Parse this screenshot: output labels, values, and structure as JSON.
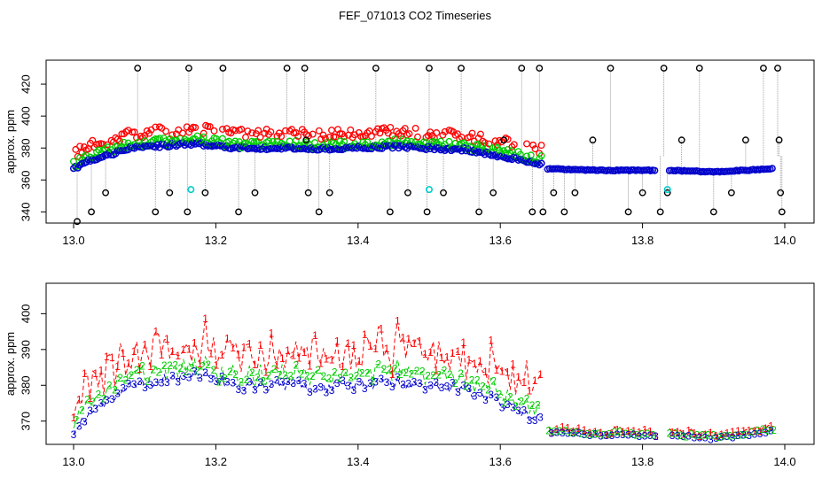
{
  "title": "FEF_071013  CO2 Timeseries",
  "colors": {
    "series1": "#ff0000",
    "series2": "#00cc00",
    "series3": "#0000cc",
    "qc": "#000000",
    "flagged": "#00cccc",
    "connector": "#888888"
  },
  "chart_data": [
    {
      "type": "scatter",
      "panel": "top",
      "title": "",
      "xlabel": "",
      "ylabel": "approx. ppm",
      "xlim": [
        13.0,
        14.0
      ],
      "ylim": [
        333,
        435
      ],
      "x_ticks": [
        "13.0",
        "13.2",
        "13.4",
        "13.6",
        "13.8",
        "14.0"
      ],
      "y_ticks": [
        "340",
        "360",
        "380",
        "400",
        "420"
      ],
      "segments": [
        {
          "x0": 13.0,
          "x1": 13.02,
          "v0": 367,
          "v1": 372
        },
        {
          "x0": 13.02,
          "x1": 13.08,
          "v0": 372,
          "v1": 380
        },
        {
          "x0": 13.08,
          "x1": 13.17,
          "v0": 380,
          "v1": 383
        },
        {
          "x0": 13.17,
          "x1": 13.23,
          "v0": 383,
          "v1": 380
        },
        {
          "x0": 13.23,
          "x1": 13.33,
          "v0": 380,
          "v1": 380
        },
        {
          "x0": 13.33,
          "x1": 13.45,
          "v0": 379,
          "v1": 381
        },
        {
          "x0": 13.45,
          "x1": 13.55,
          "v0": 381,
          "v1": 379
        },
        {
          "x0": 13.55,
          "x1": 13.59,
          "v0": 379,
          "v1": 376
        },
        {
          "x0": 13.59,
          "x1": 13.66,
          "v0": 376,
          "v1": 370
        },
        {
          "x0": 13.665,
          "x1": 13.74,
          "v0": 367,
          "v1": 366
        },
        {
          "x0": 13.74,
          "x1": 13.82,
          "v0": 366,
          "v1": 366
        },
        {
          "x0": 13.835,
          "x1": 13.9,
          "v0": 366,
          "v1": 365
        },
        {
          "x0": 13.9,
          "x1": 13.985,
          "v0": 365,
          "v1": 367
        }
      ],
      "spikes": [
        {
          "x": 13.005,
          "y": 334
        },
        {
          "x": 13.025,
          "y": 340
        },
        {
          "x": 13.045,
          "y": 352
        },
        {
          "x": 13.09,
          "y": 430
        },
        {
          "x": 13.115,
          "y": 340
        },
        {
          "x": 13.135,
          "y": 352
        },
        {
          "x": 13.16,
          "y": 340
        },
        {
          "x": 13.162,
          "y": 430
        },
        {
          "x": 13.185,
          "y": 352
        },
        {
          "x": 13.21,
          "y": 430
        },
        {
          "x": 13.232,
          "y": 340
        },
        {
          "x": 13.255,
          "y": 352
        },
        {
          "x": 13.3,
          "y": 430
        },
        {
          "x": 13.325,
          "y": 430
        },
        {
          "x": 13.327,
          "y": 385
        },
        {
          "x": 13.33,
          "y": 352
        },
        {
          "x": 13.345,
          "y": 340
        },
        {
          "x": 13.36,
          "y": 352
        },
        {
          "x": 13.425,
          "y": 430
        },
        {
          "x": 13.445,
          "y": 340
        },
        {
          "x": 13.47,
          "y": 352
        },
        {
          "x": 13.497,
          "y": 340
        },
        {
          "x": 13.5,
          "y": 430
        },
        {
          "x": 13.52,
          "y": 352
        },
        {
          "x": 13.545,
          "y": 430
        },
        {
          "x": 13.57,
          "y": 340
        },
        {
          "x": 13.59,
          "y": 352
        },
        {
          "x": 13.605,
          "y": 385
        },
        {
          "x": 13.63,
          "y": 430
        },
        {
          "x": 13.645,
          "y": 340
        },
        {
          "x": 13.655,
          "y": 430
        },
        {
          "x": 13.66,
          "y": 340
        },
        {
          "x": 13.675,
          "y": 352
        },
        {
          "x": 13.69,
          "y": 340
        },
        {
          "x": 13.705,
          "y": 352
        },
        {
          "x": 13.73,
          "y": 385
        },
        {
          "x": 13.755,
          "y": 430
        },
        {
          "x": 13.78,
          "y": 340
        },
        {
          "x": 13.8,
          "y": 352
        },
        {
          "x": 13.825,
          "y": 340
        },
        {
          "x": 13.83,
          "y": 430
        },
        {
          "x": 13.835,
          "y": 352
        },
        {
          "x": 13.855,
          "y": 385
        },
        {
          "x": 13.88,
          "y": 430
        },
        {
          "x": 13.9,
          "y": 340
        },
        {
          "x": 13.925,
          "y": 352
        },
        {
          "x": 13.945,
          "y": 385
        },
        {
          "x": 13.97,
          "y": 430
        },
        {
          "x": 13.99,
          "y": 430
        },
        {
          "x": 13.992,
          "y": 385
        },
        {
          "x": 13.994,
          "y": 352
        },
        {
          "x": 13.996,
          "y": 340
        }
      ],
      "flagged_points": [
        {
          "x": 13.165,
          "y": 354
        },
        {
          "x": 13.5,
          "y": 354
        },
        {
          "x": 13.835,
          "y": 354
        }
      ]
    },
    {
      "type": "line",
      "panel": "bottom",
      "title": "",
      "xlabel": "",
      "ylabel": "approx. ppm",
      "xlim": [
        13.0,
        14.0
      ],
      "ylim": [
        363.5,
        408.5
      ],
      "x_ticks": [
        "13.0",
        "13.2",
        "13.4",
        "13.6",
        "13.8",
        "14.0"
      ],
      "y_ticks": [
        "370",
        "380",
        "390",
        "400"
      ],
      "series": [
        {
          "name": "1",
          "marker": "1",
          "offset_early": 10,
          "offset_late": 1.5
        },
        {
          "name": "2",
          "marker": "2",
          "offset_early": 4,
          "offset_late": 0.8
        },
        {
          "name": "3",
          "marker": "3",
          "offset_early": 0,
          "offset_late": 0
        }
      ],
      "segments": [
        {
          "x0": 13.0,
          "x1": 13.02,
          "v0": 367,
          "v1": 372
        },
        {
          "x0": 13.02,
          "x1": 13.08,
          "v0": 372,
          "v1": 380
        },
        {
          "x0": 13.08,
          "x1": 13.17,
          "v0": 380,
          "v1": 383
        },
        {
          "x0": 13.17,
          "x1": 13.23,
          "v0": 383,
          "v1": 380
        },
        {
          "x0": 13.23,
          "x1": 13.33,
          "v0": 380,
          "v1": 380
        },
        {
          "x0": 13.33,
          "x1": 13.45,
          "v0": 379,
          "v1": 381
        },
        {
          "x0": 13.45,
          "x1": 13.55,
          "v0": 381,
          "v1": 379
        },
        {
          "x0": 13.55,
          "x1": 13.59,
          "v0": 379,
          "v1": 376
        },
        {
          "x0": 13.59,
          "x1": 13.66,
          "v0": 376,
          "v1": 370
        },
        {
          "x0": 13.665,
          "x1": 13.74,
          "v0": 367,
          "v1": 366
        },
        {
          "x0": 13.74,
          "x1": 13.82,
          "v0": 366,
          "v1": 366
        },
        {
          "x0": 13.835,
          "x1": 13.9,
          "v0": 366,
          "v1": 365
        },
        {
          "x0": 13.9,
          "x1": 13.985,
          "v0": 365,
          "v1": 367
        }
      ]
    }
  ]
}
